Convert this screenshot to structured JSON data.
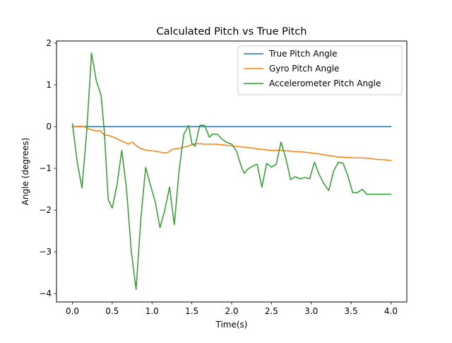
{
  "chart_data": {
    "type": "line",
    "title": "Calculated Pitch vs True Pitch",
    "xlabel": "Time(s)",
    "ylabel": "Angle (degrees)",
    "xlim": [
      -0.2,
      4.2
    ],
    "ylim": [
      -4.2,
      2.05
    ],
    "xticks": [
      0.0,
      0.5,
      1.0,
      1.5,
      2.0,
      2.5,
      3.0,
      3.5,
      4.0
    ],
    "xtick_labels": [
      "0.0",
      "0.5",
      "1.0",
      "1.5",
      "2.0",
      "2.5",
      "3.0",
      "3.5",
      "4.0"
    ],
    "yticks": [
      -4,
      -3,
      -2,
      -1,
      0,
      1,
      2
    ],
    "ytick_labels": [
      "−4",
      "−3",
      "−2",
      "−1",
      "0",
      "1",
      "2"
    ],
    "grid": false,
    "legend_position": "top-right",
    "series": [
      {
        "name": "True Pitch Angle",
        "color": "#1f77b4",
        "x": [
          0.0,
          4.0
        ],
        "y": [
          0.0,
          0.0
        ]
      },
      {
        "name": "Gyro Pitch Angle",
        "color": "#ff7f0e",
        "x": [
          0.0,
          0.05,
          0.1,
          0.15,
          0.2,
          0.25,
          0.3,
          0.35,
          0.4,
          0.45,
          0.5,
          0.55,
          0.6,
          0.65,
          0.7,
          0.75,
          0.8,
          0.85,
          0.9,
          0.95,
          1.0,
          1.05,
          1.1,
          1.15,
          1.2,
          1.25,
          1.3,
          1.35,
          1.4,
          1.45,
          1.5,
          1.55,
          1.6,
          1.65,
          1.7,
          1.75,
          1.8,
          1.85,
          1.9,
          1.95,
          2.0,
          2.05,
          2.1,
          2.15,
          2.2,
          2.25,
          2.3,
          2.35,
          2.4,
          2.45,
          2.5,
          2.55,
          2.6,
          2.65,
          2.7,
          2.75,
          2.8,
          2.85,
          2.9,
          2.95,
          3.0,
          3.05,
          3.1,
          3.15,
          3.2,
          3.25,
          3.3,
          3.35,
          3.4,
          3.45,
          3.5,
          3.55,
          3.6,
          3.65,
          3.7,
          3.75,
          3.8,
          3.85,
          3.9,
          3.95,
          4.0
        ],
        "y": [
          0.0,
          0.0,
          0.01,
          0.0,
          -0.05,
          -0.08,
          -0.1,
          -0.1,
          -0.2,
          -0.21,
          -0.24,
          -0.28,
          -0.33,
          -0.37,
          -0.42,
          -0.37,
          -0.45,
          -0.52,
          -0.55,
          -0.57,
          -0.58,
          -0.59,
          -0.61,
          -0.63,
          -0.62,
          -0.55,
          -0.53,
          -0.52,
          -0.49,
          -0.47,
          -0.43,
          -0.41,
          -0.41,
          -0.42,
          -0.42,
          -0.42,
          -0.42,
          -0.43,
          -0.44,
          -0.45,
          -0.46,
          -0.47,
          -0.48,
          -0.49,
          -0.5,
          -0.51,
          -0.53,
          -0.54,
          -0.55,
          -0.56,
          -0.57,
          -0.57,
          -0.56,
          -0.58,
          -0.58,
          -0.59,
          -0.6,
          -0.6,
          -0.61,
          -0.62,
          -0.63,
          -0.64,
          -0.66,
          -0.67,
          -0.69,
          -0.7,
          -0.72,
          -0.73,
          -0.73,
          -0.74,
          -0.74,
          -0.75,
          -0.75,
          -0.75,
          -0.76,
          -0.76,
          -0.78,
          -0.79,
          -0.79,
          -0.8,
          -0.81
        ]
      },
      {
        "name": "Accelerometer Pitch Angle",
        "color": "#2ca02c",
        "x": [
          0.0,
          0.06,
          0.12,
          0.18,
          0.24,
          0.3,
          0.36,
          0.4,
          0.45,
          0.5,
          0.56,
          0.62,
          0.68,
          0.74,
          0.8,
          0.86,
          0.92,
          0.98,
          1.04,
          1.1,
          1.16,
          1.22,
          1.28,
          1.34,
          1.4,
          1.46,
          1.5,
          1.54,
          1.6,
          1.66,
          1.72,
          1.76,
          1.82,
          1.88,
          1.94,
          2.0,
          2.06,
          2.12,
          2.16,
          2.2,
          2.26,
          2.32,
          2.38,
          2.44,
          2.5,
          2.56,
          2.62,
          2.68,
          2.74,
          2.8,
          2.86,
          2.92,
          2.98,
          3.04,
          3.1,
          3.16,
          3.22,
          3.28,
          3.34,
          3.4,
          3.46,
          3.52,
          3.58,
          3.64,
          3.7,
          3.76,
          3.82,
          3.88,
          3.94,
          4.0
        ],
        "y": [
          0.07,
          -0.85,
          -1.47,
          -0.1,
          1.76,
          1.1,
          0.75,
          -0.1,
          -1.75,
          -1.95,
          -1.4,
          -0.57,
          -1.5,
          -3.0,
          -3.9,
          -2.2,
          -0.98,
          -1.4,
          -1.8,
          -2.42,
          -2.0,
          -1.45,
          -2.35,
          -1.05,
          -0.18,
          0.03,
          -0.4,
          -0.47,
          0.03,
          0.03,
          -0.25,
          -0.18,
          -0.18,
          -0.3,
          -0.38,
          -0.42,
          -0.58,
          -0.95,
          -1.12,
          -1.02,
          -0.95,
          -0.9,
          -1.45,
          -0.88,
          -0.97,
          -0.9,
          -0.37,
          -0.75,
          -1.27,
          -1.2,
          -1.25,
          -1.22,
          -1.25,
          -0.85,
          -1.15,
          -1.37,
          -1.53,
          -1.07,
          -0.85,
          -0.88,
          -1.18,
          -1.58,
          -1.58,
          -1.5,
          -1.62,
          -1.62,
          -1.62,
          -1.62,
          -1.62,
          -1.62
        ]
      }
    ]
  }
}
